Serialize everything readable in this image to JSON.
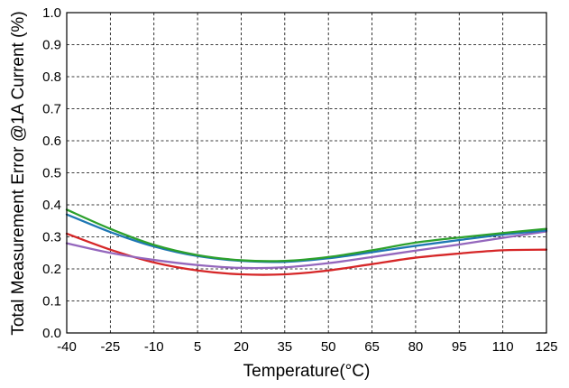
{
  "chart_data": {
    "type": "line",
    "title": "",
    "xlabel": "Temperature(°C)",
    "ylabel": "Total Measurement Error @1A Current (%)",
    "xlim": [
      -40,
      125
    ],
    "ylim": [
      0.0,
      1.0
    ],
    "x_ticks": [
      -40,
      -25,
      -10,
      5,
      20,
      35,
      50,
      65,
      80,
      95,
      110,
      125
    ],
    "x_tick_labels": [
      "-40",
      "-25",
      "-10",
      "5",
      "20",
      "35",
      "50",
      "65",
      "80",
      "95",
      "110",
      "125"
    ],
    "y_ticks": [
      0.0,
      0.1,
      0.2,
      0.3,
      0.4,
      0.5,
      0.6,
      0.7,
      0.8,
      0.9,
      1.0
    ],
    "y_tick_labels": [
      "0.0",
      "0.1",
      "0.2",
      "0.3",
      "0.4",
      "0.5",
      "0.6",
      "0.7",
      "0.8",
      "0.9",
      "1.0"
    ],
    "grid": true,
    "legend": "none",
    "series": [
      {
        "color": "#d62728",
        "x": [
          -40,
          -25,
          -10,
          5,
          20,
          35,
          50,
          65,
          80,
          95,
          110,
          125
        ],
        "y": [
          0.31,
          0.26,
          0.22,
          0.195,
          0.183,
          0.183,
          0.195,
          0.215,
          0.235,
          0.248,
          0.258,
          0.26
        ]
      },
      {
        "color": "#9467bd",
        "x": [
          -40,
          -25,
          -10,
          5,
          20,
          35,
          50,
          65,
          80,
          95,
          110,
          125
        ],
        "y": [
          0.28,
          0.25,
          0.228,
          0.212,
          0.203,
          0.205,
          0.218,
          0.237,
          0.257,
          0.276,
          0.297,
          0.317
        ]
      },
      {
        "color": "#1f77b4",
        "x": [
          -40,
          -25,
          -10,
          5,
          20,
          35,
          50,
          65,
          80,
          95,
          110,
          125
        ],
        "y": [
          0.37,
          0.315,
          0.27,
          0.24,
          0.225,
          0.222,
          0.233,
          0.252,
          0.272,
          0.29,
          0.307,
          0.32
        ]
      },
      {
        "color": "#2ca02c",
        "x": [
          -40,
          -25,
          -10,
          5,
          20,
          35,
          50,
          65,
          80,
          95,
          110,
          125
        ],
        "y": [
          0.385,
          0.325,
          0.275,
          0.243,
          0.227,
          0.225,
          0.237,
          0.258,
          0.282,
          0.298,
          0.312,
          0.325
        ]
      }
    ]
  }
}
